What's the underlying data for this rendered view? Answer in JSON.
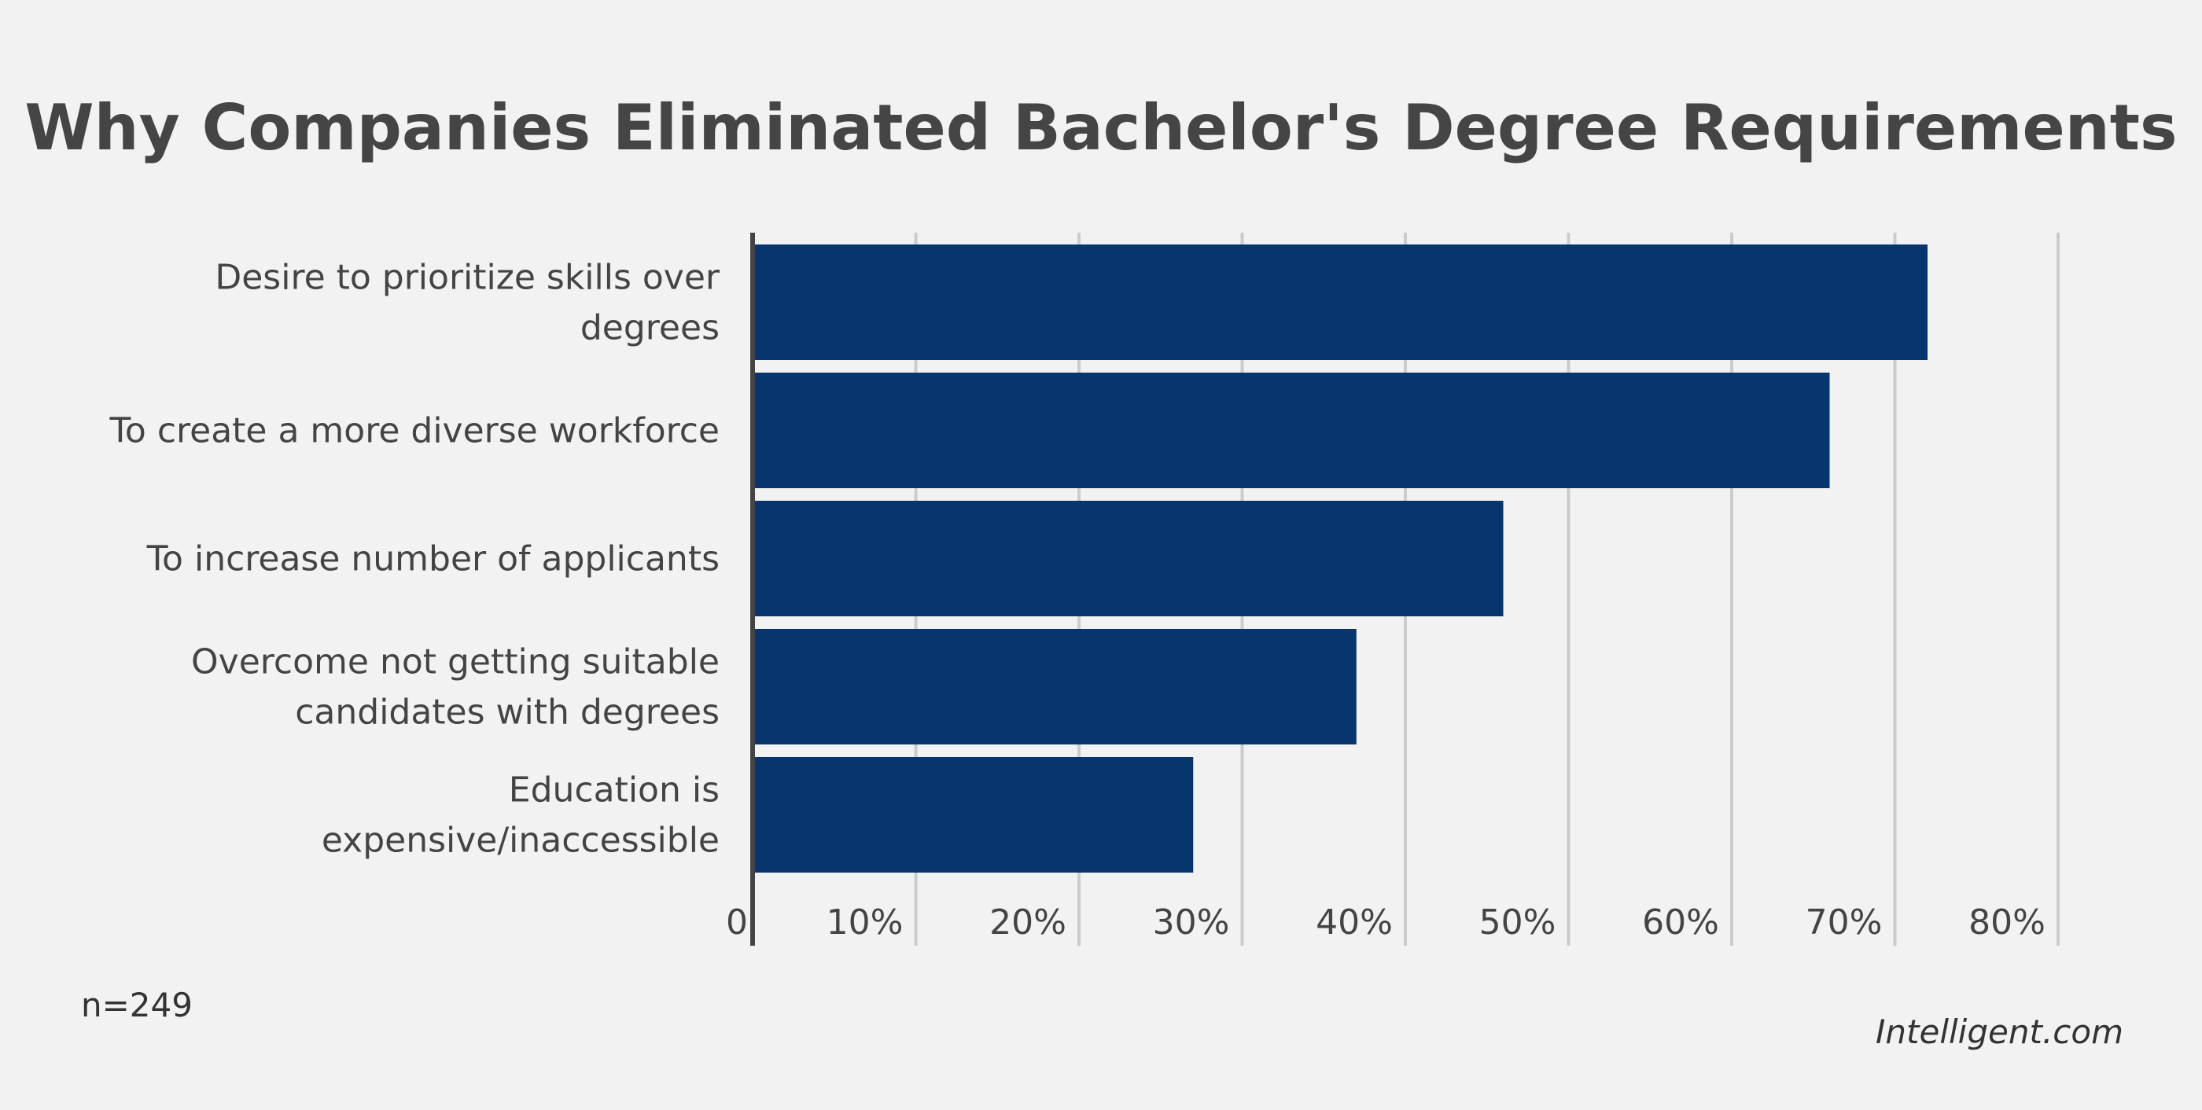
{
  "chart_data": {
    "type": "bar",
    "orientation": "horizontal",
    "title": "Why Companies Eliminated Bachelor's Degree Requirements",
    "categories": [
      [
        "Desire to prioritize skills over",
        "degrees"
      ],
      [
        "To create a more diverse workforce"
      ],
      [
        "To increase number of applicants"
      ],
      [
        "Overcome not getting suitable",
        "candidates with degrees"
      ],
      [
        "Education is",
        "expensive/inaccessible"
      ]
    ],
    "values": [
      72,
      66,
      46,
      37,
      27
    ],
    "unit": "%",
    "xlim": [
      0,
      80
    ],
    "xticks": [
      "0",
      "10%",
      "20%",
      "30%",
      "40%",
      "50%",
      "60%",
      "70%",
      "80%"
    ],
    "grid": true,
    "bar_color": "#07356e",
    "grid_color": "#cccccc",
    "axis_color": "#444444"
  },
  "footer": {
    "sample_size": "n=249",
    "source": "Intelligent.com"
  }
}
